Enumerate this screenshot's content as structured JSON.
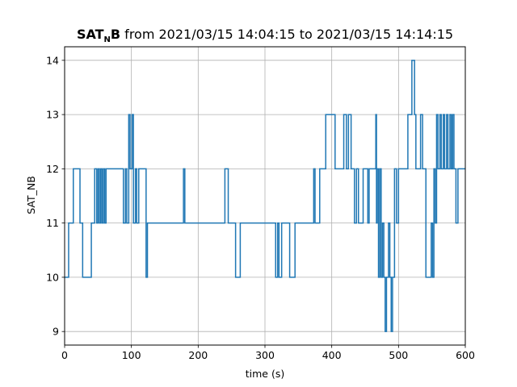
{
  "chart_data": {
    "type": "line",
    "step": true,
    "title": {
      "prefix_main": "SAT",
      "prefix_sub": "N",
      "prefix_end": "B",
      "rest": " from 2021/03/15 14:04:15 to 2021/03/15 14:14:15"
    },
    "xlabel": "time (s)",
    "ylabel": "SAT_NB",
    "xlim": [
      0,
      600
    ],
    "ylim": [
      8.75,
      14.25
    ],
    "xticks": [
      0,
      100,
      200,
      300,
      400,
      500,
      600
    ],
    "yticks": [
      9,
      10,
      11,
      12,
      13,
      14
    ],
    "grid": true,
    "line_color": "#1f77b4",
    "series": [
      {
        "x": [
          0,
          6,
          13,
          23,
          27,
          33,
          40,
          45,
          48,
          50,
          52,
          54,
          56,
          58,
          60,
          62,
          78,
          87,
          88,
          91,
          93,
          96,
          98,
          101,
          103,
          106,
          108,
          111,
          122,
          124,
          126,
          178,
          180,
          240,
          245,
          256,
          263,
          316,
          319,
          321,
          325,
          337,
          345,
          373,
          375,
          382,
          391,
          405,
          416,
          418,
          422,
          425,
          429,
          432,
          434,
          437,
          440,
          447,
          453,
          454,
          456,
          466,
          467,
          468,
          470,
          472,
          474,
          476,
          478,
          480,
          482,
          485,
          487,
          489,
          491,
          494,
          497,
          500,
          514,
          520,
          524,
          526,
          533,
          536,
          540,
          541,
          547,
          549,
          551,
          553,
          555,
          557,
          559,
          562,
          564,
          567,
          569,
          572,
          574,
          577,
          579,
          581,
          583,
          586,
          589,
          600
        ],
        "y": [
          10,
          11,
          12,
          11,
          10,
          10,
          11,
          12,
          11,
          12,
          11,
          12,
          11,
          12,
          11,
          12,
          12,
          12,
          11,
          12,
          11,
          13,
          12,
          13,
          11,
          12,
          11,
          12,
          10,
          11,
          11,
          12,
          11,
          12,
          11,
          10,
          11,
          10,
          11,
          10,
          11,
          10,
          11,
          12,
          11,
          12,
          13,
          12,
          12,
          13,
          12,
          13,
          12,
          12,
          11,
          12,
          11,
          12,
          12,
          11,
          12,
          13,
          11,
          12,
          10,
          12,
          10,
          11,
          10,
          9,
          10,
          11,
          10,
          9,
          10,
          12,
          11,
          12,
          13,
          14,
          13,
          12,
          13,
          12,
          12,
          10,
          10,
          11,
          10,
          12,
          11,
          13,
          12,
          13,
          12,
          13,
          12,
          13,
          12,
          13,
          12,
          13,
          12,
          11,
          12,
          12
        ]
      }
    ]
  }
}
